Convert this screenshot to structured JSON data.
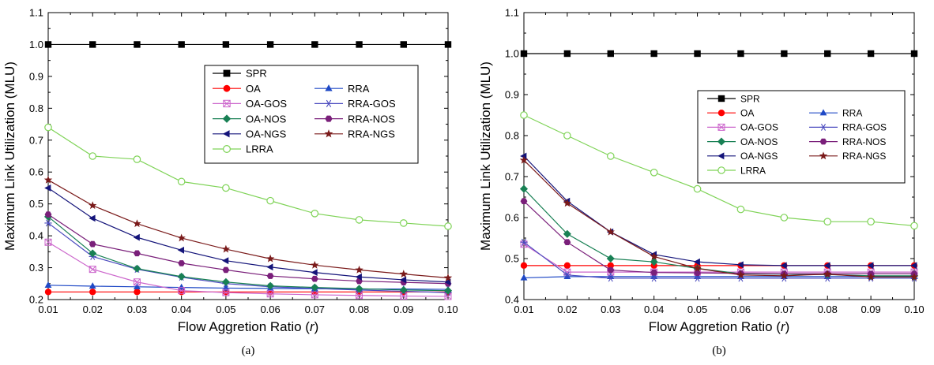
{
  "chart_data": [
    {
      "type": "line",
      "caption": "(a)",
      "xlabel_prefix": "Flow Aggretion Ratio (",
      "xlabel_var": "r",
      "xlabel_suffix": ")",
      "ylabel": "Maximum Link Utilization (MLU)",
      "xlim": [
        0.01,
        0.1
      ],
      "ylim": [
        0.2,
        1.1
      ],
      "x_ticks": [
        "0.01",
        "0.02",
        "0.03",
        "0.04",
        "0.05",
        "0.06",
        "0.07",
        "0.08",
        "0.09",
        "0.10"
      ],
      "y_ticks": [
        "0.2",
        "0.3",
        "0.4",
        "0.5",
        "0.6",
        "0.7",
        "0.8",
        "0.9",
        "1.0",
        "1.1"
      ],
      "legend_placement": "center-right",
      "x": [
        0.01,
        0.02,
        0.03,
        0.04,
        0.05,
        0.06,
        0.07,
        0.08,
        0.09,
        0.1
      ],
      "series": [
        {
          "name": "SPR",
          "color": "#000000",
          "marker": "square",
          "values": [
            1.0,
            1.0,
            1.0,
            1.0,
            1.0,
            1.0,
            1.0,
            1.0,
            1.0,
            1.0
          ]
        },
        {
          "name": "OA",
          "color": "#ff0000",
          "marker": "circle",
          "values": [
            0.224,
            0.224,
            0.224,
            0.224,
            0.224,
            0.224,
            0.224,
            0.224,
            0.224,
            0.224
          ]
        },
        {
          "name": "RRA",
          "color": "#1f49c6",
          "marker": "triangle",
          "values": [
            0.245,
            0.242,
            0.24,
            0.238,
            0.236,
            0.235,
            0.234,
            0.233,
            0.233,
            0.232
          ]
        },
        {
          "name": "OA-GOS",
          "color": "#cc66cc",
          "marker": "boxx",
          "values": [
            0.38,
            0.295,
            0.255,
            0.228,
            0.222,
            0.218,
            0.215,
            0.213,
            0.211,
            0.21
          ]
        },
        {
          "name": "RRA-GOS",
          "color": "#4b4bbf",
          "marker": "star6",
          "values": [
            0.44,
            0.335,
            0.295,
            0.27,
            0.25,
            0.24,
            0.235,
            0.23,
            0.226,
            0.222
          ]
        },
        {
          "name": "OA-NOS",
          "color": "#188054",
          "marker": "diamond",
          "values": [
            0.46,
            0.345,
            0.297,
            0.272,
            0.255,
            0.243,
            0.238,
            0.234,
            0.23,
            0.228
          ]
        },
        {
          "name": "RRA-NOS",
          "color": "#7a1f7a",
          "marker": "hexagon",
          "values": [
            0.467,
            0.374,
            0.345,
            0.314,
            0.293,
            0.274,
            0.265,
            0.258,
            0.254,
            0.25
          ]
        },
        {
          "name": "OA-NGS",
          "color": "#14147a",
          "marker": "tri-left",
          "values": [
            0.55,
            0.455,
            0.395,
            0.355,
            0.322,
            0.302,
            0.285,
            0.271,
            0.262,
            0.255
          ]
        },
        {
          "name": "RRA-NGS",
          "color": "#7a1a1a",
          "marker": "star",
          "values": [
            0.575,
            0.495,
            0.438,
            0.393,
            0.358,
            0.328,
            0.308,
            0.293,
            0.28,
            0.268
          ]
        },
        {
          "name": "LRRA",
          "color": "#7fd357",
          "marker": "open-circle",
          "values": [
            0.74,
            0.65,
            0.64,
            0.57,
            0.55,
            0.51,
            0.47,
            0.45,
            0.44,
            0.43
          ]
        }
      ]
    },
    {
      "type": "line",
      "caption": "(b)",
      "xlabel_prefix": "Flow Aggretion Ratio (",
      "xlabel_var": "r",
      "xlabel_suffix": ")",
      "ylabel": "Maximum Link Utilization (MLU)",
      "xlim": [
        0.01,
        0.1
      ],
      "ylim": [
        0.4,
        1.1
      ],
      "x_ticks": [
        "0.01",
        "0.02",
        "0.03",
        "0.04",
        "0.05",
        "0.06",
        "0.07",
        "0.08",
        "0.09",
        "0.10"
      ],
      "y_ticks": [
        "0.4",
        "0.5",
        "0.6",
        "0.7",
        "0.8",
        "0.9",
        "1.0",
        "1.1"
      ],
      "legend_placement": "center-right",
      "x": [
        0.01,
        0.02,
        0.03,
        0.04,
        0.05,
        0.06,
        0.07,
        0.08,
        0.09,
        0.1
      ],
      "series": [
        {
          "name": "SPR",
          "color": "#000000",
          "marker": "square",
          "values": [
            1.0,
            1.0,
            1.0,
            1.0,
            1.0,
            1.0,
            1.0,
            1.0,
            1.0,
            1.0
          ]
        },
        {
          "name": "OA",
          "color": "#ff0000",
          "marker": "circle",
          "values": [
            0.483,
            0.483,
            0.483,
            0.483,
            0.483,
            0.483,
            0.483,
            0.483,
            0.483,
            0.483
          ]
        },
        {
          "name": "RRA",
          "color": "#1f49c6",
          "marker": "triangle",
          "values": [
            0.453,
            0.456,
            0.456,
            0.456,
            0.456,
            0.456,
            0.456,
            0.456,
            0.456,
            0.456
          ]
        },
        {
          "name": "OA-GOS",
          "color": "#cc66cc",
          "marker": "boxx",
          "values": [
            0.535,
            0.467,
            0.467,
            0.467,
            0.467,
            0.467,
            0.467,
            0.467,
            0.467,
            0.467
          ]
        },
        {
          "name": "RRA-GOS",
          "color": "#4b4bbf",
          "marker": "star6",
          "values": [
            0.54,
            0.46,
            0.452,
            0.452,
            0.452,
            0.452,
            0.452,
            0.452,
            0.452,
            0.452
          ]
        },
        {
          "name": "OA-NOS",
          "color": "#188054",
          "marker": "diamond",
          "values": [
            0.67,
            0.56,
            0.5,
            0.492,
            0.476,
            0.463,
            0.462,
            0.461,
            0.458,
            0.458
          ]
        },
        {
          "name": "RRA-NOS",
          "color": "#7a1f7a",
          "marker": "hexagon",
          "values": [
            0.64,
            0.54,
            0.472,
            0.466,
            0.465,
            0.464,
            0.463,
            0.463,
            0.463,
            0.463
          ]
        },
        {
          "name": "OA-NGS",
          "color": "#14147a",
          "marker": "tri-left",
          "values": [
            0.75,
            0.64,
            0.565,
            0.51,
            0.492,
            0.485,
            0.483,
            0.483,
            0.483,
            0.483
          ]
        },
        {
          "name": "RRA-NGS",
          "color": "#7a1a1a",
          "marker": "star",
          "values": [
            0.74,
            0.635,
            0.565,
            0.505,
            0.476,
            0.46,
            0.458,
            0.462,
            0.455,
            0.455
          ]
        },
        {
          "name": "LRRA",
          "color": "#7fd357",
          "marker": "open-circle",
          "values": [
            0.85,
            0.8,
            0.75,
            0.71,
            0.67,
            0.62,
            0.6,
            0.59,
            0.59,
            0.58
          ]
        }
      ]
    }
  ]
}
